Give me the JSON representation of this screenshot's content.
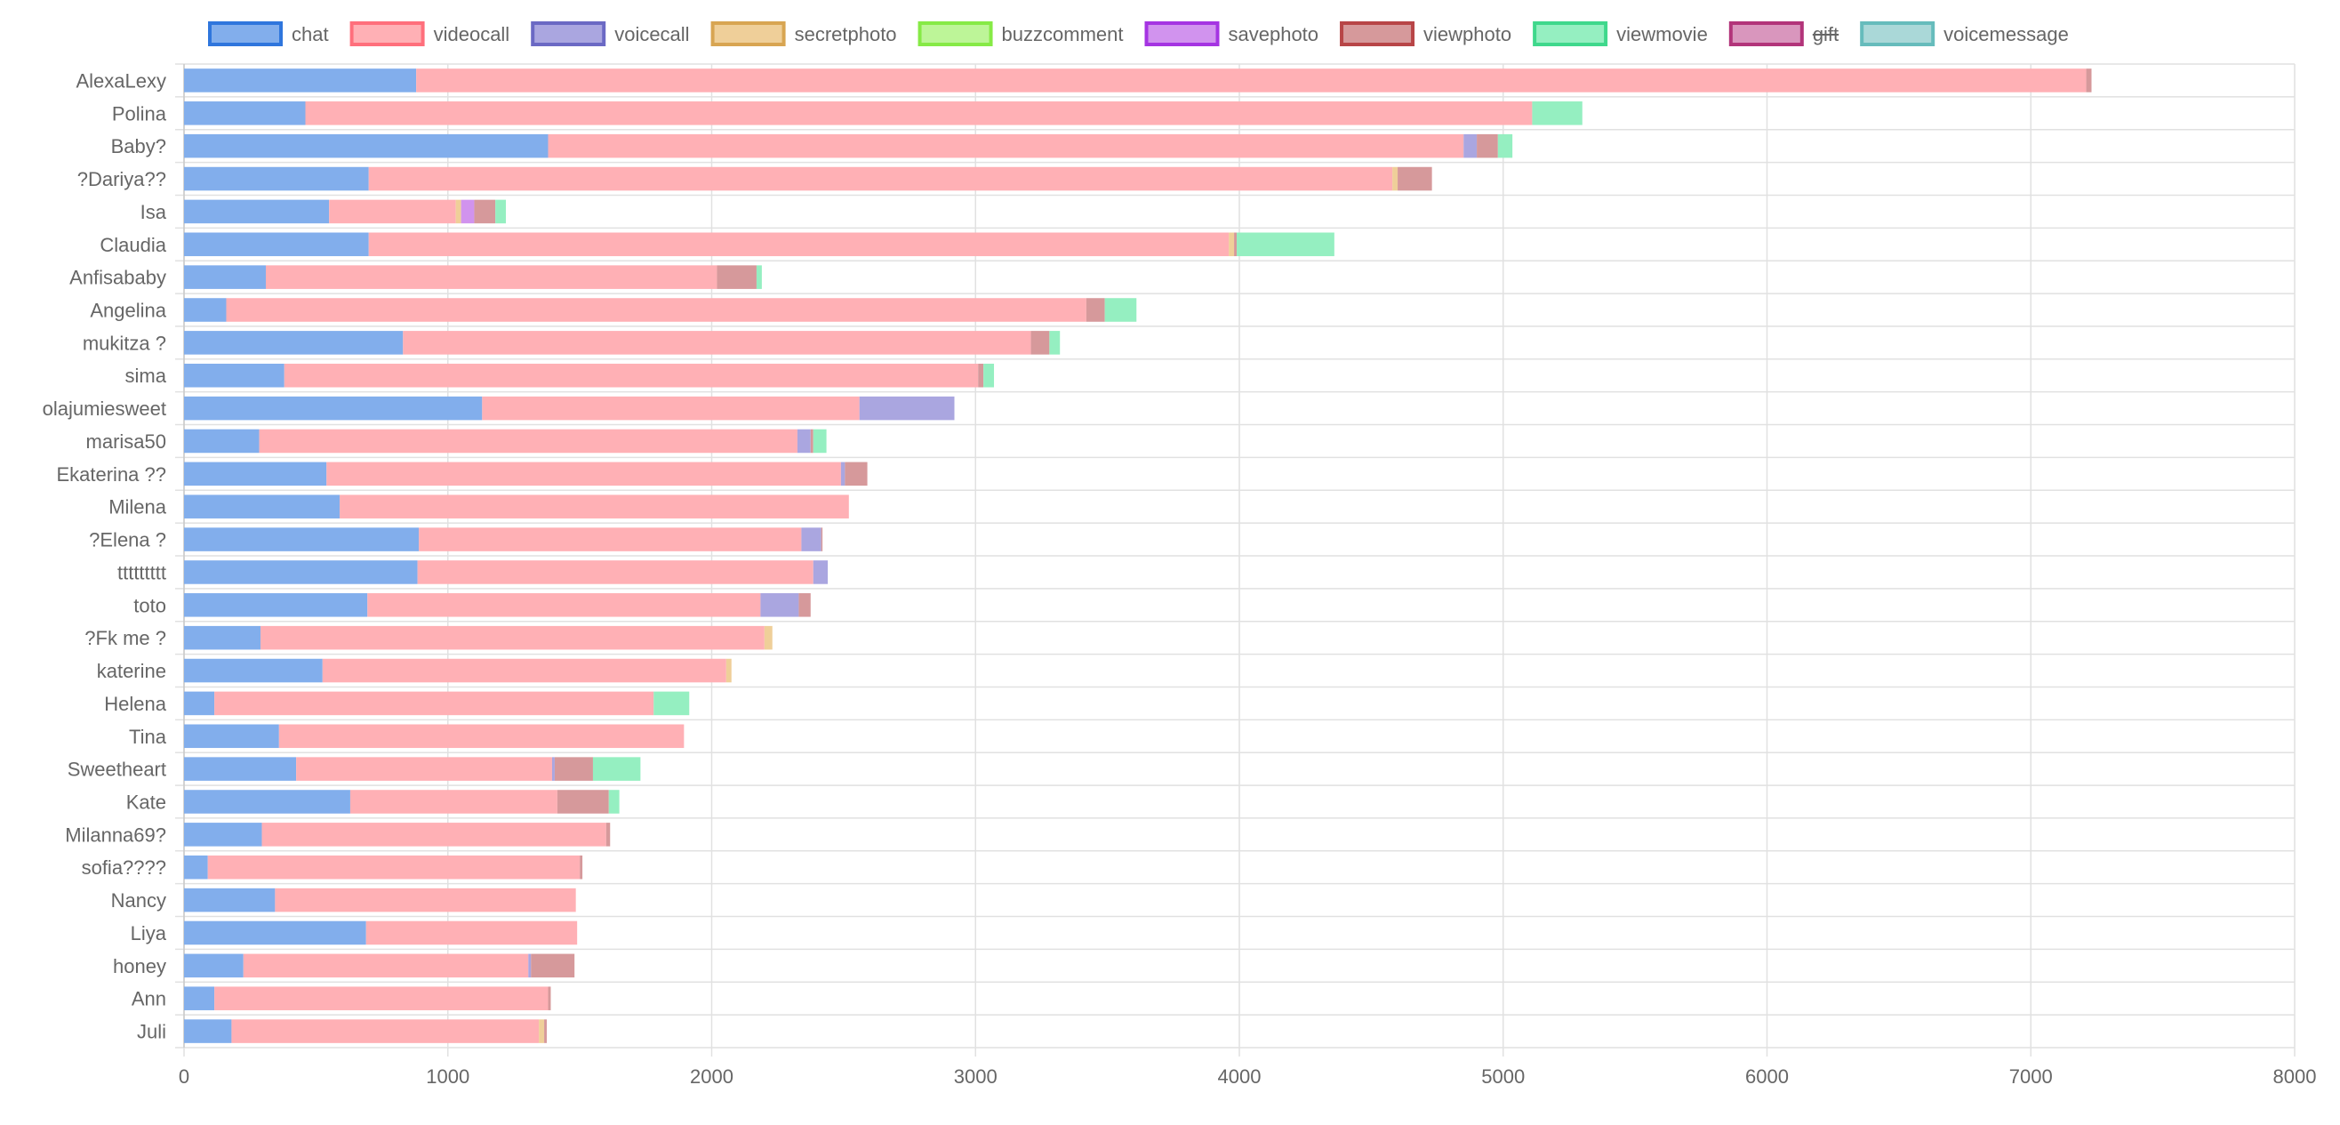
{
  "chart_data": {
    "type": "bar",
    "orientation": "horizontal",
    "stacked": true,
    "grid": true,
    "legend_position": "top",
    "xlim": [
      0,
      8000
    ],
    "x_ticks": [
      0,
      1000,
      2000,
      3000,
      4000,
      5000,
      6000,
      7000,
      8000
    ],
    "categories": [
      "AlexaLexy",
      "Polina",
      "Baby?",
      "?Dariya??",
      "Isa",
      "Claudia",
      "Anfisababy",
      "Angelina",
      "mukitza ?",
      "sima",
      "olajumiesweet",
      "marisa50",
      "Ekaterina ??",
      "Milena",
      "?Elena ?",
      "ttttttttt",
      "toto",
      "?Fk me ?",
      "katerine",
      "Helena",
      "Tina",
      "Sweetheart",
      "Kate",
      "Milanna69?",
      "sofia????",
      "Nancy",
      "Liya",
      "honey",
      "Ann",
      "Juli"
    ],
    "series": [
      {
        "name": "chat",
        "fill": "#82aeec",
        "stroke": "#2f76dd",
        "hidden": false,
        "values": [
          880,
          460,
          1380,
          700,
          550,
          700,
          310,
          160,
          830,
          380,
          1130,
          285,
          540,
          590,
          890,
          885,
          695,
          290,
          525,
          115,
          360,
          425,
          630,
          295,
          90,
          345,
          690,
          225,
          115,
          180
        ]
      },
      {
        "name": "videocall",
        "fill": "#ffb0b5",
        "stroke": "#ff6f7c",
        "hidden": false,
        "values": [
          6330,
          4650,
          3470,
          3880,
          480,
          3260,
          1710,
          3260,
          2380,
          2630,
          1430,
          2040,
          1950,
          1930,
          1450,
          1500,
          1490,
          1910,
          1530,
          1665,
          1535,
          970,
          785,
          1305,
          1410,
          1140,
          800,
          1080,
          1265,
          1165
        ]
      },
      {
        "name": "voicecall",
        "fill": "#aaa6e0",
        "stroke": "#6b69c4",
        "hidden": false,
        "values": [
          0,
          0,
          50,
          0,
          0,
          0,
          0,
          0,
          0,
          0,
          360,
          50,
          15,
          0,
          75,
          55,
          145,
          0,
          0,
          0,
          0,
          10,
          0,
          0,
          0,
          0,
          0,
          10,
          0,
          0
        ]
      },
      {
        "name": "secretphoto",
        "fill": "#efcf99",
        "stroke": "#d8a552",
        "hidden": false,
        "values": [
          0,
          0,
          0,
          20,
          20,
          20,
          0,
          0,
          0,
          0,
          0,
          0,
          0,
          0,
          0,
          0,
          0,
          30,
          20,
          0,
          0,
          0,
          0,
          0,
          0,
          0,
          0,
          0,
          0,
          20
        ]
      },
      {
        "name": "buzzcomment",
        "fill": "#bdf598",
        "stroke": "#86ea46",
        "hidden": false,
        "values": [
          0,
          0,
          0,
          0,
          0,
          0,
          0,
          0,
          0,
          0,
          0,
          0,
          0,
          0,
          0,
          0,
          0,
          0,
          0,
          0,
          0,
          0,
          0,
          0,
          0,
          0,
          0,
          0,
          0,
          0
        ]
      },
      {
        "name": "savephoto",
        "fill": "#d193ee",
        "stroke": "#a534e2",
        "hidden": false,
        "values": [
          0,
          0,
          0,
          0,
          50,
          0,
          0,
          0,
          0,
          0,
          0,
          0,
          0,
          0,
          0,
          0,
          0,
          0,
          0,
          0,
          0,
          0,
          0,
          0,
          0,
          0,
          0,
          0,
          0,
          0
        ]
      },
      {
        "name": "viewphoto",
        "fill": "#d6999b",
        "stroke": "#b84547",
        "hidden": false,
        "values": [
          20,
          0,
          80,
          130,
          80,
          10,
          150,
          70,
          70,
          20,
          0,
          10,
          85,
          0,
          5,
          0,
          45,
          0,
          0,
          0,
          0,
          145,
          195,
          15,
          10,
          0,
          0,
          165,
          10,
          10
        ]
      },
      {
        "name": "viewmovie",
        "fill": "#95efc1",
        "stroke": "#3fd88c",
        "hidden": false,
        "values": [
          0,
          190,
          55,
          0,
          40,
          370,
          20,
          120,
          40,
          40,
          0,
          50,
          0,
          0,
          0,
          0,
          0,
          0,
          0,
          135,
          0,
          180,
          40,
          0,
          0,
          0,
          0,
          0,
          0,
          0
        ]
      },
      {
        "name": "gift",
        "fill": "#d996bd",
        "stroke": "#b2347a",
        "hidden": true,
        "values": [
          0,
          0,
          0,
          0,
          0,
          0,
          0,
          0,
          0,
          0,
          0,
          0,
          0,
          0,
          0,
          0,
          0,
          0,
          0,
          0,
          0,
          0,
          0,
          0,
          0,
          0,
          0,
          0,
          0,
          0
        ]
      },
      {
        "name": "voicemessage",
        "fill": "#aad8d8",
        "stroke": "#66bcbc",
        "hidden": false,
        "values": [
          0,
          0,
          0,
          0,
          0,
          0,
          0,
          0,
          0,
          0,
          0,
          0,
          0,
          0,
          0,
          0,
          0,
          0,
          0,
          0,
          0,
          0,
          0,
          0,
          0,
          0,
          0,
          0,
          0,
          0
        ]
      }
    ]
  }
}
